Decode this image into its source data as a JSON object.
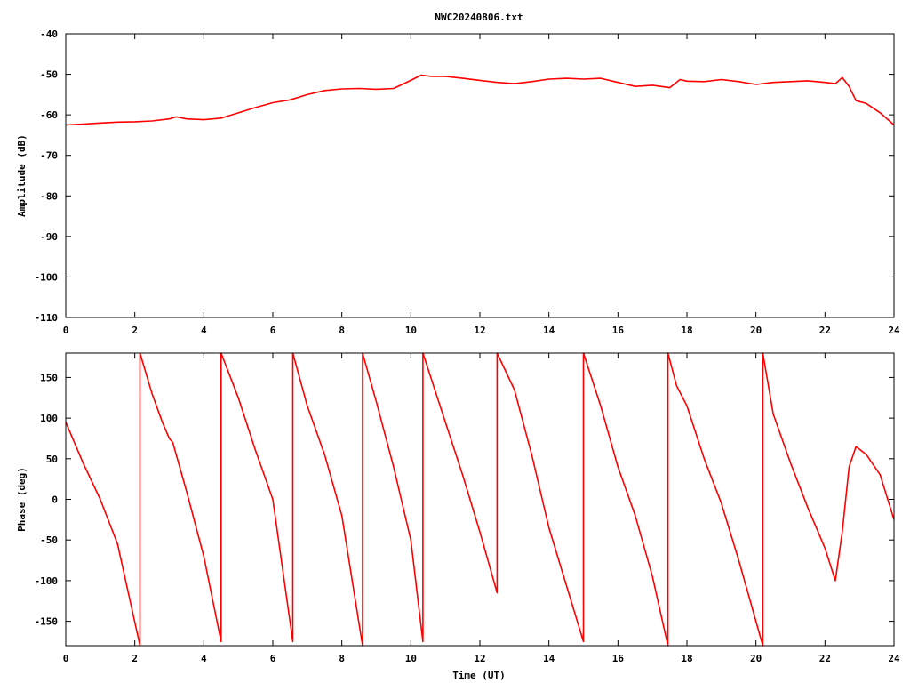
{
  "chart_data": [
    {
      "type": "line",
      "title": "NWC20240806.txt",
      "xlabel": "",
      "ylabel": "Amplitude (dB)",
      "xlim": [
        0,
        24
      ],
      "ylim": [
        -110,
        -40
      ],
      "xticks": [
        "0",
        "2",
        "4",
        "6",
        "8",
        "10",
        "12",
        "14",
        "16",
        "18",
        "20",
        "22",
        "24"
      ],
      "yticks": [
        "-40",
        "-50",
        "-60",
        "-70",
        "-80",
        "-90",
        "-100",
        "-110"
      ],
      "ytick_values": [
        -40,
        -50,
        -60,
        -70,
        -80,
        -90,
        -100,
        -110
      ],
      "grid": false,
      "color": "#ff0000",
      "series": [
        {
          "x": [
            0,
            0.5,
            1,
            1.5,
            2,
            2.5,
            3,
            3.2,
            3.5,
            4,
            4.5,
            5,
            5.5,
            6,
            6.5,
            7,
            7.5,
            8,
            8.5,
            9,
            9.5,
            10,
            10.3,
            10.6,
            11,
            11.5,
            12,
            12.5,
            13,
            13.5,
            14,
            14.5,
            15,
            15.5,
            16,
            16.5,
            17,
            17.5,
            17.8,
            18,
            18.5,
            19,
            19.5,
            20,
            20.5,
            21,
            21.5,
            22,
            22.3,
            22.5,
            22.7,
            22.9,
            23.2,
            23.6,
            24
          ],
          "y": [
            -62.5,
            -62.3,
            -62,
            -61.8,
            -61.7,
            -61.5,
            -61,
            -60.5,
            -61,
            -61.2,
            -60.8,
            -59.5,
            -58.2,
            -57,
            -56.3,
            -55,
            -54,
            -53.6,
            -53.5,
            -53.7,
            -53.5,
            -51.5,
            -50.2,
            -50.5,
            -50.5,
            -51,
            -51.5,
            -52,
            -52.3,
            -51.8,
            -51.2,
            -51,
            -51.2,
            -51,
            -52,
            -53,
            -52.7,
            -53.3,
            -51.3,
            -51.7,
            -51.8,
            -51.3,
            -51.8,
            -52.5,
            -52,
            -51.8,
            -51.6,
            -52,
            -52.3,
            -50.8,
            -53,
            -56.5,
            -57.2,
            -59.5,
            -62.5
          ]
        }
      ]
    },
    {
      "type": "line",
      "title": "",
      "xlabel": "Time (UT)",
      "ylabel": "Phase (deg)",
      "xlim": [
        0,
        24
      ],
      "ylim": [
        -180,
        180
      ],
      "xticks": [
        "0",
        "2",
        "4",
        "6",
        "8",
        "10",
        "12",
        "14",
        "16",
        "18",
        "20",
        "22",
        "24"
      ],
      "yticks": [
        "150",
        "100",
        "50",
        "0",
        "-50",
        "-100",
        "-150"
      ],
      "ytick_values": [
        150,
        100,
        50,
        0,
        -50,
        -100,
        -150
      ],
      "grid": false,
      "color": "#ff0000",
      "series": [
        {
          "x": [
            0,
            0.5,
            1,
            1.5,
            2.15,
            2.15,
            2.5,
            2.8,
            3,
            3.1,
            3.5,
            4,
            4.5,
            4.5,
            5,
            5.5,
            6,
            6.58,
            6.58,
            7,
            7.5,
            8,
            8.6,
            8.6,
            9,
            9.5,
            10,
            10.35,
            10.35,
            11,
            11.5,
            12,
            12.5,
            12.5,
            13,
            13.5,
            14,
            15,
            15,
            15.5,
            16,
            16.5,
            17,
            17.45,
            17.45,
            17.7,
            18,
            18.5,
            19,
            19.5,
            20,
            20.2,
            20.2,
            20.5,
            21,
            21.5,
            22,
            22.3,
            22.5,
            22.7,
            22.9,
            23.2,
            23.6,
            24
          ],
          "y": [
            95,
            45,
            0,
            -55,
            -180,
            180,
            130,
            95,
            75,
            70,
            10,
            -70,
            -175,
            180,
            125,
            60,
            0,
            -175,
            180,
            115,
            55,
            -20,
            -180,
            180,
            120,
            40,
            -50,
            -175,
            180,
            95,
            30,
            -40,
            -115,
            180,
            135,
            55,
            -35,
            -175,
            180,
            115,
            40,
            -20,
            -95,
            -180,
            180,
            140,
            115,
            50,
            -5,
            -75,
            -150,
            -180,
            180,
            105,
            45,
            -10,
            -60,
            -100,
            -40,
            40,
            65,
            55,
            30,
            -25
          ]
        }
      ]
    }
  ]
}
